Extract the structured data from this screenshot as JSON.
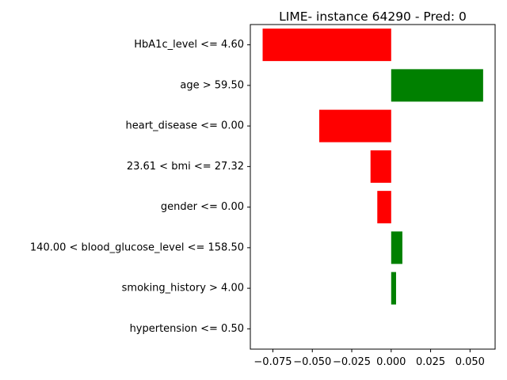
{
  "chart_data": {
    "type": "bar",
    "orientation": "horizontal",
    "title": "LIME- instance 64290 - Pred: 0",
    "xlabel": "",
    "ylabel": "",
    "categories": [
      "HbA1c_level <= 4.60",
      "age > 59.50",
      "heart_disease <= 0.00",
      "23.61 < bmi <= 27.32",
      "gender <= 0.00",
      "140.00 < blood_glucose_level <= 158.50",
      "smoking_history > 4.00",
      "hypertension <= 0.50"
    ],
    "values": [
      -0.0815,
      0.0583,
      -0.0456,
      -0.0131,
      -0.0088,
      0.0071,
      0.0031,
      0.0
    ],
    "xlim": [
      -0.0893,
      0.0659
    ],
    "xticks": [
      -0.075,
      -0.05,
      -0.025,
      0.0,
      0.025,
      0.05
    ],
    "xtick_labels": [
      "−0.075",
      "−0.050",
      "−0.025",
      "0.000",
      "0.025",
      "0.050"
    ],
    "colors": {
      "positive": "#008000",
      "negative": "#ff0000"
    },
    "grid": false
  }
}
